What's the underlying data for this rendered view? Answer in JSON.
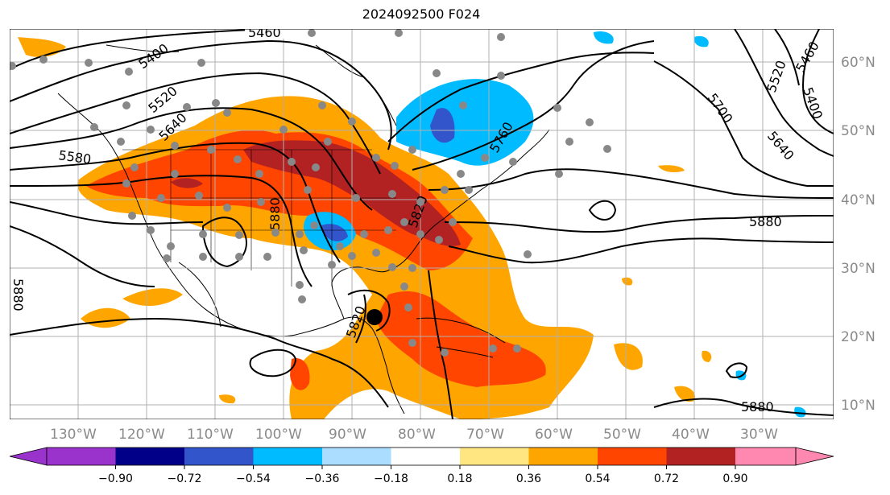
{
  "title": "2024092500 F024",
  "map": {
    "lon_labels": [
      "130°W",
      "120°W",
      "110°W",
      "100°W",
      "90°W",
      "80°W",
      "70°W",
      "60°W",
      "50°W",
      "40°W",
      "30°W"
    ],
    "lat_labels": [
      "60°N",
      "50°N",
      "40°N",
      "30°N",
      "20°N",
      "10°N"
    ],
    "contour_labels": [
      "5460",
      "5400",
      "5520",
      "5640",
      "5580",
      "5880",
      "5880",
      "5820",
      "5820",
      "5700",
      "5640",
      "5520",
      "5460",
      "5400",
      "5880",
      "5880",
      "5880",
      "5760"
    ]
  },
  "colorbar": {
    "ticks": [
      "−0.90",
      "−0.72",
      "−0.54",
      "−0.36",
      "−0.18",
      "0.18",
      "0.36",
      "0.54",
      "0.72",
      "0.90"
    ],
    "colors": [
      "#9933cc",
      "#000088",
      "#3355cc",
      "#00bbff",
      "#aaddff",
      "#ffffff",
      "#ffe680",
      "#ffa500",
      "#ff4500",
      "#b22222",
      "#ff88b0"
    ]
  },
  "colors": {
    "land_outline": "#000000",
    "grid": "#b0b0b0",
    "station_dot": "#888888",
    "storm_center": "#000000"
  }
}
